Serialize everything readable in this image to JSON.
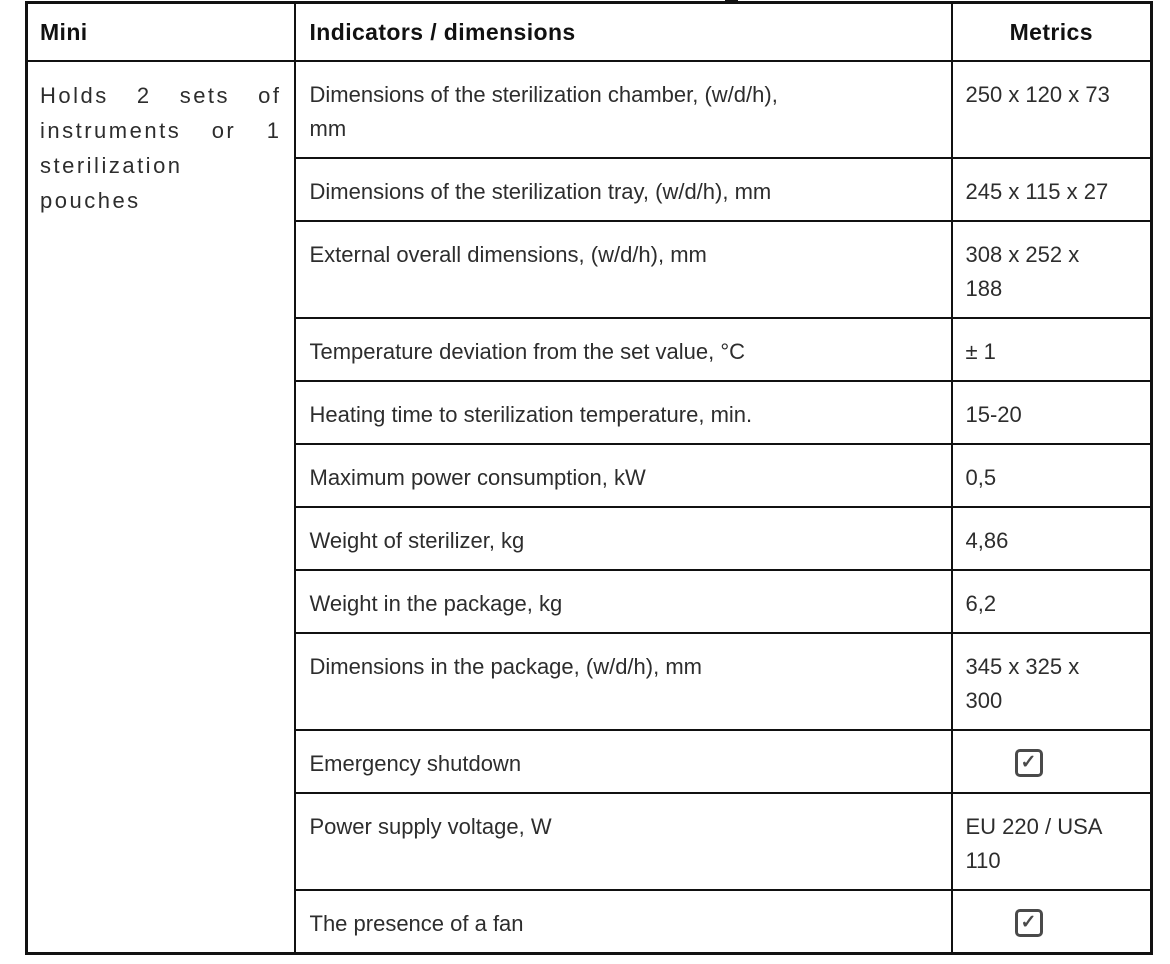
{
  "header": {
    "product": "Mini",
    "indicators": "Indicators / dimensions",
    "metrics": "Metrics"
  },
  "product": {
    "description": "Holds 2 sets of instruments or 1 sterilization pouches"
  },
  "rows": [
    {
      "indicator": "Dimensions of the sterilization chamber, (w/d/h), mm",
      "metric_type": "text",
      "metric": "250 x 120 x 73"
    },
    {
      "indicator": "Dimensions of the sterilization tray, (w/d/h), mm",
      "metric_type": "text",
      "metric": "245 x 115 x 27"
    },
    {
      "indicator": "External overall dimensions, (w/d/h), mm",
      "metric_type": "text",
      "metric": "308 x 252 x 188"
    },
    {
      "indicator": "Temperature deviation from the set value, °C",
      "metric_type": "text",
      "metric": "± 1"
    },
    {
      "indicator": "Heating time to sterilization temperature, min.",
      "metric_type": "text",
      "metric": "15-20"
    },
    {
      "indicator": "Maximum power consumption, kW",
      "metric_type": "text",
      "metric": "0,5"
    },
    {
      "indicator": "Weight of sterilizer, kg",
      "metric_type": "text",
      "metric": "4,86"
    },
    {
      "indicator": "Weight in the package, kg",
      "metric_type": "text",
      "metric": "6,2"
    },
    {
      "indicator": "Dimensions in the package, (w/d/h), mm",
      "metric_type": "text",
      "metric": "345 x 325 x 300"
    },
    {
      "indicator": "Emergency shutdown",
      "metric_type": "checkbox",
      "checked": true
    },
    {
      "indicator": "Power supply voltage, W",
      "metric_type": "text",
      "metric": "EU 220 / USA 110"
    },
    {
      "indicator": "The presence of a fan",
      "metric_type": "checkbox",
      "checked": true
    }
  ],
  "icons": {
    "check_mark": "✓"
  },
  "colors": {
    "border": "#111111",
    "text": "#2d2d2d",
    "header_text": "#111111",
    "checkbox": "#4a4a4a",
    "background": "#ffffff"
  }
}
